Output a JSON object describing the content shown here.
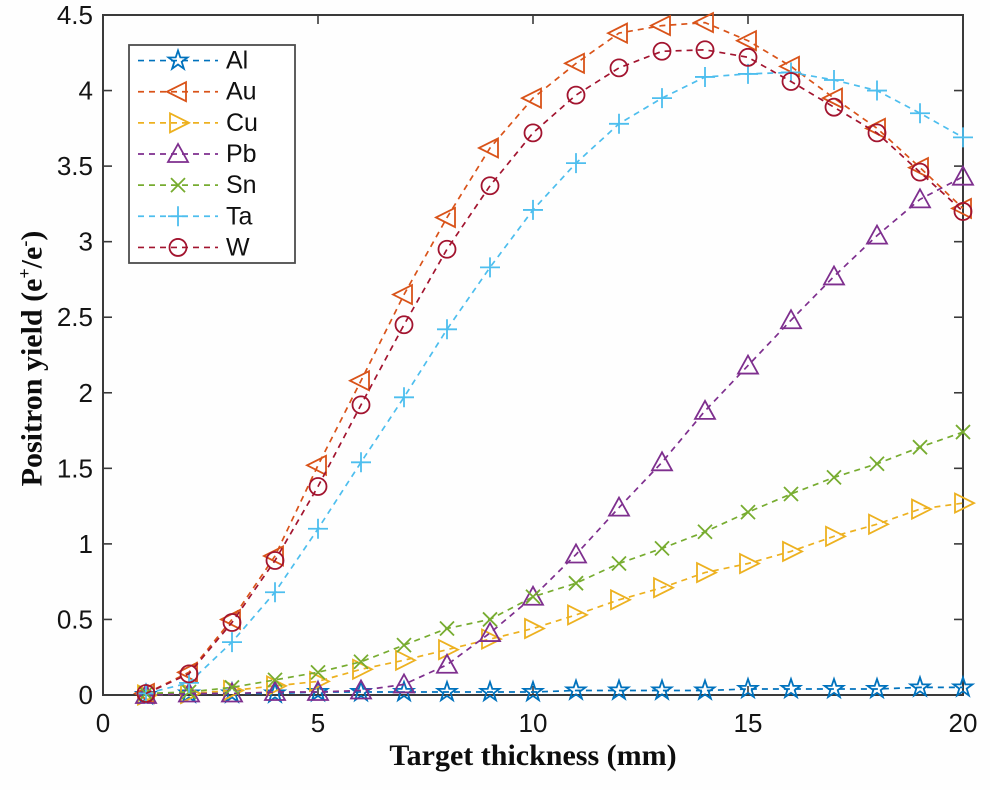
{
  "figure": {
    "background": "#fefefe",
    "axis_color": "#3a3a3a",
    "text_color": "#141414",
    "legend_border_color": "#4d4d4d"
  },
  "chart_data": {
    "type": "line",
    "title": "",
    "xlabel": "Target thickness (mm)",
    "ylabel": "Positron yield (e+/e-)",
    "ylabel_rich": {
      "pre": "Positron yield (e",
      "sup1": "+",
      "mid": "/e",
      "sup2": "-",
      "post": ")"
    },
    "xlim": [
      0,
      20
    ],
    "ylim": [
      0,
      4.5
    ],
    "x_ticks": [
      0,
      5,
      10,
      15,
      20
    ],
    "y_ticks": [
      0,
      0.5,
      1,
      1.5,
      2,
      2.5,
      3,
      3.5,
      4,
      4.5
    ],
    "grid": false,
    "line_style": "dashed",
    "legend_position": "upper-left",
    "x": [
      1,
      2,
      3,
      4,
      5,
      6,
      7,
      8,
      9,
      10,
      11,
      12,
      13,
      14,
      15,
      16,
      17,
      18,
      19,
      20
    ],
    "series": [
      {
        "name": "Al",
        "color": "#0072BD",
        "marker": "pentagram",
        "values": [
          0.0,
          0.01,
          0.01,
          0.01,
          0.02,
          0.02,
          0.02,
          0.02,
          0.02,
          0.02,
          0.03,
          0.03,
          0.03,
          0.03,
          0.04,
          0.04,
          0.04,
          0.04,
          0.05,
          0.05
        ]
      },
      {
        "name": "Au",
        "color": "#D95319",
        "marker": "triangle-left",
        "values": [
          0.01,
          0.15,
          0.5,
          0.92,
          1.52,
          2.08,
          2.65,
          3.16,
          3.62,
          3.95,
          4.18,
          4.38,
          4.43,
          4.45,
          4.33,
          4.16,
          3.95,
          3.75,
          3.49,
          3.22
        ]
      },
      {
        "name": "Cu",
        "color": "#EDB120",
        "marker": "triangle-right",
        "values": [
          0.0,
          0.01,
          0.03,
          0.06,
          0.09,
          0.17,
          0.23,
          0.3,
          0.37,
          0.44,
          0.53,
          0.63,
          0.71,
          0.81,
          0.87,
          0.95,
          1.05,
          1.13,
          1.23,
          1.27
        ]
      },
      {
        "name": "Pb",
        "color": "#7E2F8E",
        "marker": "triangle-up",
        "values": [
          0.0,
          0.01,
          0.01,
          0.02,
          0.02,
          0.03,
          0.07,
          0.2,
          0.41,
          0.65,
          0.93,
          1.24,
          1.54,
          1.88,
          2.18,
          2.48,
          2.77,
          3.04,
          3.28,
          3.43
        ]
      },
      {
        "name": "Sn",
        "color": "#77AC30",
        "marker": "x",
        "values": [
          0.01,
          0.02,
          0.05,
          0.1,
          0.15,
          0.22,
          0.33,
          0.44,
          0.5,
          0.65,
          0.74,
          0.87,
          0.97,
          1.08,
          1.21,
          1.33,
          1.44,
          1.53,
          1.64,
          1.74
        ]
      },
      {
        "name": "Ta",
        "color": "#4DBEEE",
        "marker": "plus",
        "values": [
          0.01,
          0.08,
          0.35,
          0.68,
          1.1,
          1.54,
          1.97,
          2.42,
          2.83,
          3.21,
          3.52,
          3.78,
          3.95,
          4.09,
          4.11,
          4.12,
          4.07,
          4.0,
          3.85,
          3.69
        ]
      },
      {
        "name": "W",
        "color": "#A2142F",
        "marker": "circle",
        "values": [
          0.01,
          0.14,
          0.48,
          0.89,
          1.38,
          1.92,
          2.45,
          2.95,
          3.37,
          3.72,
          3.97,
          4.15,
          4.26,
          4.27,
          4.22,
          4.06,
          3.89,
          3.72,
          3.46,
          3.2
        ]
      }
    ]
  }
}
